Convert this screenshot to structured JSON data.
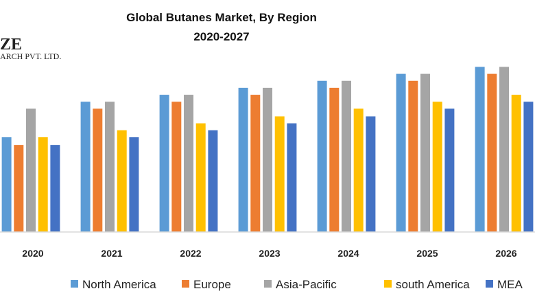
{
  "logo": {
    "line1": "ZE",
    "line2": "ARCH PVT. LTD."
  },
  "chart_data": {
    "type": "bar",
    "title": "Global Butanes Market, By Region",
    "subtitle": "2020-2027",
    "xlabel": "",
    "ylabel": "",
    "ylim": [
      0,
      24
    ],
    "grid": false,
    "legend_position": "bottom",
    "categories": [
      "2020",
      "2021",
      "2022",
      "2023",
      "2024",
      "2025",
      "2026"
    ],
    "series": [
      {
        "name": "North America",
        "color": "#5B9BD5",
        "values": [
          13.6,
          18.7,
          19.7,
          20.7,
          21.7,
          22.7,
          23.7
        ]
      },
      {
        "name": "Europe",
        "color": "#ED7D31",
        "values": [
          12.5,
          17.7,
          18.7,
          19.7,
          20.7,
          21.7,
          22.7
        ]
      },
      {
        "name": "Asia-Pacific",
        "color": "#A5A5A5",
        "values": [
          17.7,
          18.7,
          19.7,
          20.7,
          21.7,
          22.7,
          23.7
        ]
      },
      {
        "name": "south America",
        "color": "#FFC000",
        "values": [
          13.6,
          14.6,
          15.6,
          16.6,
          17.7,
          18.7,
          19.7
        ]
      },
      {
        "name": "MEA",
        "color": "#4472C4",
        "values": [
          12.5,
          13.6,
          14.6,
          15.6,
          16.6,
          17.7,
          18.7
        ]
      }
    ]
  }
}
